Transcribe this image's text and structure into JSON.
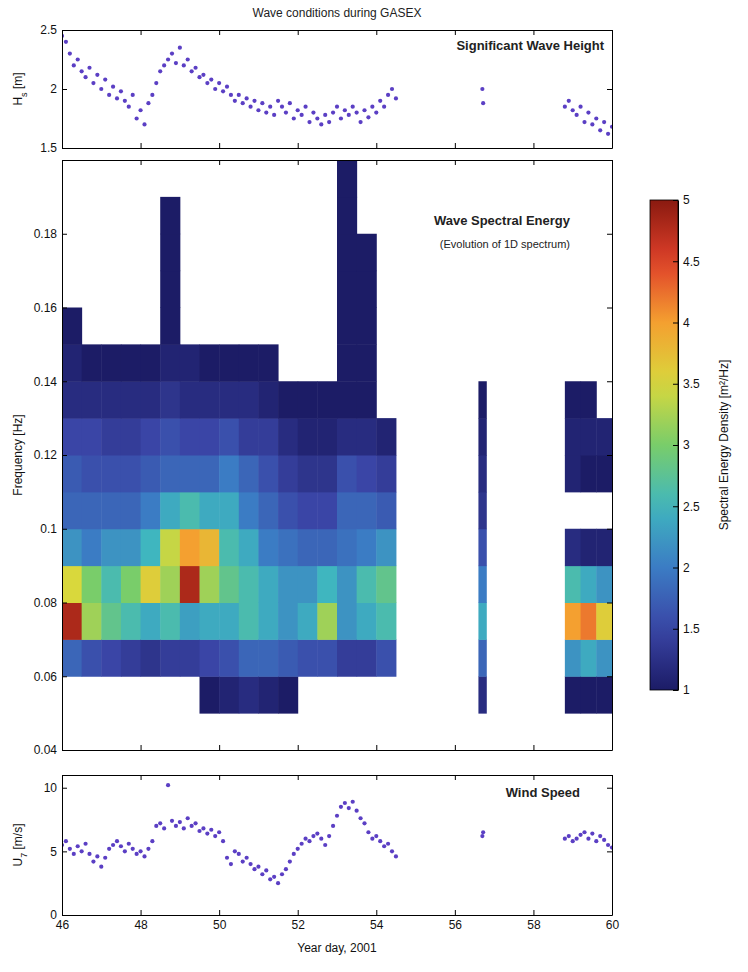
{
  "chart_data": [
    {
      "type": "scatter",
      "title": "Wave conditions during GASEX",
      "annotations": [
        "Significant Wave Height"
      ],
      "y_label": "Hs [m]",
      "color": "#5b3fc4",
      "marker": "circle",
      "tick_labels": "y",
      "xlim": [
        46,
        60
      ],
      "xticks": [
        46,
        48,
        50,
        52,
        54,
        56,
        58,
        60
      ],
      "ylim": [
        1.5,
        2.5
      ],
      "yticks": [
        1.5,
        2,
        2.5
      ],
      "x": [
        46.0,
        46.1,
        46.2,
        46.3,
        46.4,
        46.5,
        46.6,
        46.7,
        46.8,
        46.9,
        47.0,
        47.1,
        47.2,
        47.3,
        47.4,
        47.5,
        47.6,
        47.7,
        47.8,
        47.9,
        48.0,
        48.1,
        48.2,
        48.3,
        48.4,
        48.5,
        48.6,
        48.7,
        48.8,
        48.9,
        49.0,
        49.1,
        49.2,
        49.3,
        49.4,
        49.5,
        49.6,
        49.7,
        49.8,
        49.9,
        50.0,
        50.1,
        50.2,
        50.3,
        50.4,
        50.5,
        50.6,
        50.7,
        50.8,
        50.9,
        51.0,
        51.1,
        51.2,
        51.3,
        51.4,
        51.5,
        51.6,
        51.7,
        51.8,
        51.9,
        52.0,
        52.1,
        52.2,
        52.3,
        52.4,
        52.5,
        52.6,
        52.7,
        52.8,
        52.9,
        53.0,
        53.1,
        53.2,
        53.3,
        53.4,
        53.5,
        53.6,
        53.7,
        53.8,
        53.9,
        54.0,
        54.1,
        54.2,
        54.3,
        54.4,
        54.5,
        56.7,
        56.72,
        58.8,
        58.9,
        59.0,
        59.1,
        59.2,
        59.3,
        59.4,
        59.5,
        59.6,
        59.7,
        59.8,
        59.9,
        60.0
      ],
      "values": [
        2.45,
        2.4,
        2.3,
        2.2,
        2.25,
        2.15,
        2.1,
        2.18,
        2.05,
        2.12,
        2.0,
        2.08,
        1.95,
        2.02,
        1.92,
        1.98,
        1.9,
        1.85,
        1.95,
        1.75,
        1.82,
        1.7,
        1.88,
        1.95,
        2.05,
        2.15,
        2.2,
        2.25,
        2.3,
        2.22,
        2.35,
        2.2,
        2.25,
        2.15,
        2.18,
        2.1,
        2.12,
        2.05,
        2.08,
        2.0,
        2.05,
        1.98,
        2.02,
        1.95,
        1.9,
        1.95,
        1.88,
        1.92,
        1.85,
        1.9,
        1.82,
        1.88,
        1.8,
        1.85,
        1.78,
        1.9,
        1.85,
        1.8,
        1.88,
        1.75,
        1.82,
        1.78,
        1.85,
        1.72,
        1.8,
        1.75,
        1.7,
        1.78,
        1.72,
        1.8,
        1.85,
        1.75,
        1.82,
        1.78,
        1.85,
        1.8,
        1.72,
        1.82,
        1.76,
        1.85,
        1.8,
        1.9,
        1.85,
        1.95,
        2.0,
        1.92,
        2.0,
        1.88,
        1.85,
        1.9,
        1.82,
        1.78,
        1.85,
        1.72,
        1.8,
        1.7,
        1.75,
        1.65,
        1.72,
        1.62,
        1.68
      ]
    },
    {
      "type": "heatmap",
      "annotations": [
        "Wave Spectral Energy",
        "(Evolution of 1D spectrum)"
      ],
      "y_label": "Frequency [Hz]",
      "tick_labels": "y",
      "xlim": [
        46,
        60
      ],
      "xticks": [
        46,
        48,
        50,
        52,
        54,
        56,
        58,
        60
      ],
      "ylim": [
        0.04,
        0.2
      ],
      "yticks": [
        0.04,
        0.06,
        0.08,
        0.1,
        0.12,
        0.14,
        0.16,
        0.18
      ],
      "x_edges": [
        46,
        46.5,
        47,
        47.5,
        48,
        48.5,
        49,
        49.5,
        50,
        50.5,
        51,
        51.5,
        52,
        52.5,
        53,
        53.5,
        54,
        54.5,
        56.6,
        56.8,
        58.8,
        59.2,
        59.6,
        60
      ],
      "y_edges": [
        0.04,
        0.05,
        0.06,
        0.07,
        0.08,
        0.09,
        0.1,
        0.11,
        0.12,
        0.13,
        0.14,
        0.15,
        0.16,
        0.17,
        0.18,
        0.19,
        0.2
      ],
      "z": [
        [
          0,
          0.5,
          1.8,
          4.8,
          3.5,
          2.2,
          1.8,
          1.7,
          1.5,
          1.2,
          1.1,
          1.0,
          0.5,
          0,
          0,
          0
        ],
        [
          0,
          0.5,
          1.6,
          3.2,
          3.0,
          2.0,
          1.8,
          1.6,
          1.5,
          1.2,
          1.0,
          0.5,
          0,
          0,
          0,
          0
        ],
        [
          0,
          0.5,
          1.5,
          2.8,
          2.6,
          2.2,
          1.8,
          1.6,
          1.4,
          1.2,
          1.0,
          0.5,
          0,
          0,
          0,
          0
        ],
        [
          0,
          0.5,
          1.4,
          2.6,
          3.0,
          2.2,
          1.8,
          1.6,
          1.4,
          1.2,
          1.0,
          0.5,
          0,
          0,
          0,
          0
        ],
        [
          0,
          0.5,
          1.3,
          2.4,
          3.6,
          2.5,
          2.0,
          1.7,
          1.5,
          1.2,
          1.0,
          0.5,
          0,
          0,
          0,
          0
        ],
        [
          0,
          0.6,
          1.4,
          2.6,
          3.2,
          3.4,
          2.4,
          1.8,
          1.6,
          1.3,
          1.1,
          1.0,
          1.0,
          1.0,
          1.0,
          0.5
        ],
        [
          0,
          0.8,
          1.4,
          2.3,
          4.8,
          4.0,
          2.6,
          1.8,
          1.5,
          1.2,
          1.1,
          0.5,
          0,
          0,
          0,
          0
        ],
        [
          0,
          1.0,
          1.5,
          2.4,
          3.2,
          3.8,
          2.4,
          1.8,
          1.5,
          1.2,
          1.0,
          0.5,
          0,
          0,
          0,
          0
        ],
        [
          0,
          1.1,
          1.6,
          2.4,
          2.8,
          2.6,
          2.4,
          2.0,
          1.6,
          1.2,
          1.0,
          0.5,
          0,
          0,
          0,
          0
        ],
        [
          0,
          1.2,
          1.8,
          2.6,
          2.6,
          2.4,
          2.0,
          1.8,
          1.4,
          1.2,
          1.0,
          0.5,
          0,
          0,
          0,
          0
        ],
        [
          0,
          1.1,
          1.8,
          2.4,
          2.4,
          2.0,
          1.8,
          1.6,
          1.4,
          1.1,
          1.0,
          0.5,
          0,
          0,
          0,
          0
        ],
        [
          0,
          1.0,
          1.7,
          2.2,
          2.2,
          1.9,
          1.6,
          1.4,
          1.2,
          1.0,
          0.6,
          0,
          0,
          0,
          0,
          0
        ],
        [
          0,
          0.8,
          1.6,
          2.4,
          2.2,
          1.8,
          1.5,
          1.3,
          1.1,
          1.0,
          0.5,
          0,
          0,
          0,
          0,
          0
        ],
        [
          0,
          0.6,
          1.6,
          3.2,
          2.5,
          1.8,
          1.5,
          1.3,
          1.1,
          1.0,
          0.5,
          0,
          0,
          0,
          0,
          0
        ],
        [
          0,
          0.6,
          1.4,
          2.2,
          2.2,
          1.9,
          1.8,
          1.6,
          1.2,
          1.0,
          1.0,
          1.0,
          1.0,
          1.0,
          1.0,
          1.0
        ],
        [
          0,
          0.6,
          1.4,
          2.4,
          2.6,
          2.0,
          1.8,
          1.5,
          1.2,
          1.0,
          1.0,
          1.0,
          1.0,
          1.0,
          0.5,
          0
        ],
        [
          0,
          0.8,
          1.6,
          2.6,
          2.8,
          2.2,
          1.7,
          1.4,
          1.1,
          0.6,
          0,
          0,
          0,
          0,
          0,
          0
        ],
        null,
        [
          0,
          1.2,
          1.8,
          2.4,
          2.0,
          1.6,
          1.3,
          1.2,
          1.1,
          1.0,
          0.5,
          0,
          0,
          0,
          0,
          0
        ],
        null,
        [
          0,
          1.0,
          2.2,
          4.0,
          2.6,
          1.2,
          0.6,
          1.1,
          1.1,
          1.0,
          0.5,
          0,
          0,
          0,
          0,
          0
        ],
        [
          0,
          1.0,
          2.4,
          4.2,
          2.4,
          1.1,
          0.5,
          1.0,
          1.1,
          1.0,
          0.5,
          0,
          0,
          0,
          0,
          0
        ],
        [
          0,
          1.0,
          2.2,
          3.6,
          2.2,
          1.1,
          0.5,
          1.0,
          1.1,
          0.5,
          0,
          0,
          0,
          0,
          0,
          0
        ]
      ],
      "colorbar": {
        "label": "Spectral Energy Density [m²/Hz]",
        "range": [
          1,
          5
        ],
        "ticks": [
          1,
          1.5,
          2,
          2.5,
          3,
          3.5,
          4,
          4.5,
          5
        ]
      }
    },
    {
      "type": "scatter",
      "annotations": [
        "Wind Speed"
      ],
      "x_label": "Year day, 2001",
      "y_label": "U7 [m/s]",
      "color": "#5b3fc4",
      "marker": "circle",
      "xlim": [
        46,
        60
      ],
      "xticks": [
        46,
        48,
        50,
        52,
        54,
        56,
        58,
        60
      ],
      "ylim": [
        0,
        11
      ],
      "yticks": [
        0,
        5,
        10
      ],
      "x": [
        46.0,
        46.1,
        46.2,
        46.3,
        46.4,
        46.5,
        46.6,
        46.7,
        46.8,
        46.9,
        47.0,
        47.1,
        47.2,
        47.3,
        47.4,
        47.5,
        47.6,
        47.7,
        47.8,
        47.9,
        48.0,
        48.1,
        48.2,
        48.3,
        48.4,
        48.5,
        48.6,
        48.7,
        48.8,
        48.9,
        49.0,
        49.1,
        49.2,
        49.3,
        49.4,
        49.5,
        49.6,
        49.7,
        49.8,
        49.9,
        50.0,
        50.1,
        50.2,
        50.3,
        50.4,
        50.5,
        50.6,
        50.7,
        50.8,
        50.9,
        51.0,
        51.1,
        51.2,
        51.3,
        51.4,
        51.5,
        51.6,
        51.7,
        51.8,
        51.9,
        52.0,
        52.1,
        52.2,
        52.3,
        52.4,
        52.5,
        52.6,
        52.7,
        52.8,
        52.9,
        53.0,
        53.1,
        53.2,
        53.3,
        53.4,
        53.5,
        53.6,
        53.7,
        53.8,
        53.9,
        54.0,
        54.1,
        54.2,
        54.3,
        54.4,
        54.5,
        56.7,
        56.72,
        58.8,
        58.9,
        59.0,
        59.1,
        59.2,
        59.3,
        59.4,
        59.5,
        59.6,
        59.7,
        59.8,
        59.9,
        60.0
      ],
      "values": [
        5.5,
        5.8,
        5.2,
        4.8,
        5.4,
        5.0,
        5.6,
        4.8,
        4.2,
        4.6,
        3.8,
        4.5,
        5.2,
        5.5,
        5.8,
        5.4,
        5.0,
        5.6,
        5.2,
        4.8,
        5.0,
        4.6,
        5.2,
        5.8,
        7.0,
        7.2,
        6.8,
        10.2,
        7.4,
        7.0,
        7.3,
        6.8,
        7.6,
        7.0,
        7.2,
        6.6,
        6.8,
        6.4,
        6.7,
        6.2,
        6.5,
        5.8,
        4.5,
        4.0,
        5.0,
        4.8,
        4.2,
        4.5,
        4.0,
        3.6,
        3.8,
        3.2,
        3.5,
        2.8,
        3.0,
        2.5,
        3.2,
        3.6,
        4.2,
        4.8,
        5.2,
        5.6,
        6.0,
        5.8,
        6.2,
        6.4,
        6.0,
        5.5,
        6.2,
        7.0,
        7.8,
        8.5,
        8.8,
        8.4,
        8.9,
        8.2,
        7.6,
        7.2,
        6.5,
        6.0,
        6.2,
        5.8,
        5.4,
        5.6,
        5.0,
        4.6,
        6.2,
        6.5,
        6.0,
        6.2,
        5.8,
        6.0,
        6.3,
        6.5,
        6.0,
        6.4,
        5.8,
        6.2,
        5.9,
        5.5,
        5.3
      ]
    }
  ]
}
